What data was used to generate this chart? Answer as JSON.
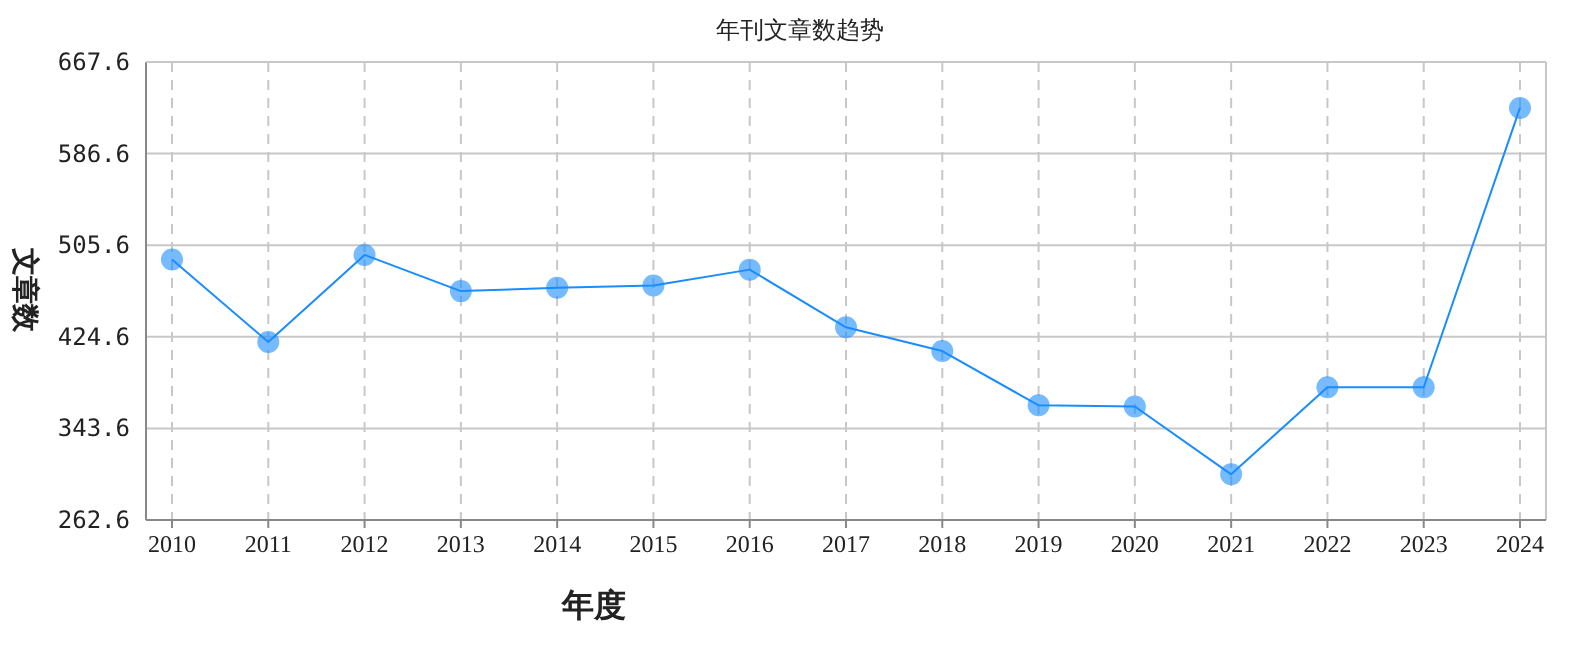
{
  "chart_data": {
    "type": "line",
    "title": "年刊文章数趋势",
    "xlabel": "年度",
    "ylabel": "文章数",
    "categories": [
      "2010",
      "2011",
      "2012",
      "2013",
      "2014",
      "2015",
      "2016",
      "2017",
      "2018",
      "2019",
      "2020",
      "2021",
      "2022",
      "2023",
      "2024"
    ],
    "series": [
      {
        "color": "#1a8cff",
        "values": [
          493,
          420,
          497,
          465,
          468,
          470,
          484,
          433,
          412,
          364,
          363,
          303,
          380,
          380,
          627
        ]
      }
    ],
    "ylim": [
      262.6,
      667.6
    ],
    "yticks": [
      262.6,
      343.6,
      424.6,
      505.6,
      586.6,
      667.6
    ],
    "grid": true,
    "marker": "circle",
    "line_style": "solid"
  }
}
